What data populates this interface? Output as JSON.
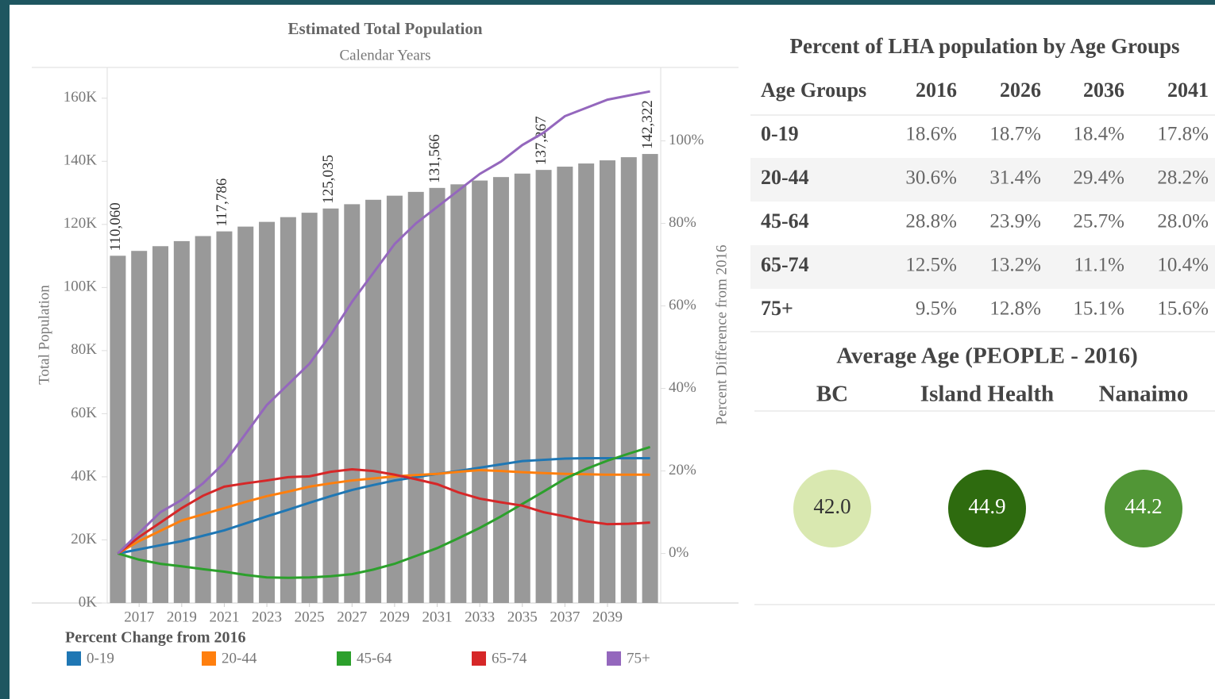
{
  "chart_data": {
    "type": "bar",
    "title": "Estimated Total Population",
    "subtitle": "Calendar Years",
    "y_label": "Total Population",
    "y2_label": "Percent Difference from 2016",
    "legend_title": "Percent Change from 2016",
    "x": [
      2016,
      2017,
      2018,
      2019,
      2020,
      2021,
      2022,
      2023,
      2024,
      2025,
      2026,
      2027,
      2028,
      2029,
      2030,
      2031,
      2032,
      2033,
      2034,
      2035,
      2036,
      2037,
      2038,
      2039,
      2040,
      2041
    ],
    "xlim": [
      2015.5,
      2041.5
    ],
    "xticks": [
      2017,
      2019,
      2021,
      2023,
      2025,
      2027,
      2029,
      2031,
      2033,
      2035,
      2037,
      2039
    ],
    "values": [
      110060,
      111600,
      113100,
      114700,
      116300,
      117786,
      119300,
      120800,
      122300,
      123700,
      125035,
      126400,
      127800,
      129100,
      130300,
      131566,
      132700,
      133900,
      135000,
      136100,
      137267,
      138300,
      139300,
      140300,
      141300,
      142322
    ],
    "value_labels": [
      "110,060",
      null,
      null,
      null,
      null,
      "117,786",
      null,
      null,
      null,
      null,
      "125,035",
      null,
      null,
      null,
      null,
      "131,566",
      null,
      null,
      null,
      null,
      "137,267",
      null,
      null,
      null,
      null,
      "142,322"
    ],
    "color": "#999999",
    "ylim": [
      0,
      170000
    ],
    "yticks": [
      {
        "value": 0,
        "label": "0K"
      },
      {
        "value": 20000,
        "label": "20K"
      },
      {
        "value": 40000,
        "label": "40K"
      },
      {
        "value": 60000,
        "label": "60K"
      },
      {
        "value": 80000,
        "label": "80K"
      },
      {
        "value": 100000,
        "label": "100K"
      },
      {
        "value": 120000,
        "label": "120K"
      },
      {
        "value": 140000,
        "label": "140K"
      },
      {
        "value": 160000,
        "label": "160K"
      }
    ],
    "y2lim": [
      -12,
      118
    ],
    "y2ticks": [
      {
        "value": 0,
        "label": "0%"
      },
      {
        "value": 20,
        "label": "20%"
      },
      {
        "value": 40,
        "label": "40%"
      },
      {
        "value": 60,
        "label": "60%"
      },
      {
        "value": 80,
        "label": "80%"
      },
      {
        "value": 100,
        "label": "100%"
      }
    ],
    "series": [
      {
        "name": "0-19",
        "color": "#1f77b4",
        "axis": "y2",
        "values": [
          0,
          1,
          2,
          3,
          4.3,
          5.6,
          7.3,
          9,
          10.6,
          12.3,
          13.9,
          15.4,
          16.6,
          17.7,
          18.5,
          19.3,
          20,
          20.8,
          21.6,
          22.4,
          22.7,
          23,
          23.1,
          23.1,
          23.1,
          23.1
        ]
      },
      {
        "name": "20-44",
        "color": "#ff7f0e",
        "axis": "y2",
        "values": [
          0,
          3,
          5.5,
          8,
          9.5,
          11,
          12.5,
          13.9,
          15,
          16.2,
          17,
          17.7,
          18.2,
          18.7,
          19,
          19.3,
          19.8,
          20.2,
          20,
          19.7,
          19.5,
          19.3,
          19.2,
          19.1,
          19.1,
          19.1
        ]
      },
      {
        "name": "45-64",
        "color": "#2ca02c",
        "axis": "y2",
        "values": [
          0,
          -1.5,
          -2.5,
          -3.1,
          -3.8,
          -4.4,
          -5.2,
          -5.8,
          -5.9,
          -5.8,
          -5.5,
          -5,
          -3.9,
          -2.5,
          -0.6,
          1.3,
          3.7,
          6.2,
          9,
          12,
          15,
          18.1,
          20.5,
          22.5,
          24.2,
          25.8
        ]
      },
      {
        "name": "65-74",
        "color": "#d62728",
        "axis": "y2",
        "values": [
          0,
          4,
          7.5,
          11,
          14,
          16.2,
          17,
          17.7,
          18.5,
          18.7,
          19.8,
          20.4,
          20,
          19.1,
          18,
          16.8,
          14.8,
          13.3,
          12.4,
          11.6,
          10,
          9,
          7.8,
          7.1,
          7.2,
          7.5
        ]
      },
      {
        "name": "75+",
        "color": "#9467bd",
        "axis": "y2",
        "values": [
          0,
          5,
          10,
          13,
          17,
          22,
          29,
          36,
          41,
          46,
          53,
          61,
          68,
          75,
          80,
          84,
          88,
          92,
          95,
          99,
          102,
          106,
          108,
          110,
          111,
          112
        ]
      }
    ]
  },
  "table": {
    "title": "Percent of LHA population by Age Groups",
    "header": [
      "Age Groups",
      "2016",
      "2026",
      "2036",
      "2041"
    ],
    "rows": [
      [
        "0-19",
        "18.6%",
        "18.7%",
        "18.4%",
        "17.8%"
      ],
      [
        "20-44",
        "30.6%",
        "31.4%",
        "29.4%",
        "28.2%"
      ],
      [
        "45-64",
        "28.8%",
        "23.9%",
        "25.7%",
        "28.0%"
      ],
      [
        "65-74",
        "12.5%",
        "13.2%",
        "11.1%",
        "10.4%"
      ],
      [
        "75+",
        "9.5%",
        "12.8%",
        "15.1%",
        "15.6%"
      ]
    ]
  },
  "average_age": {
    "title": "Average Age (PEOPLE - 2016)",
    "items": [
      {
        "label": "BC",
        "value": "42.0",
        "color": "#d9e8b0"
      },
      {
        "label": "Island Health",
        "value": "44.9",
        "color": "#2e6b0f"
      },
      {
        "label": "Nanaimo",
        "value": "44.2",
        "color": "#519636"
      }
    ]
  }
}
